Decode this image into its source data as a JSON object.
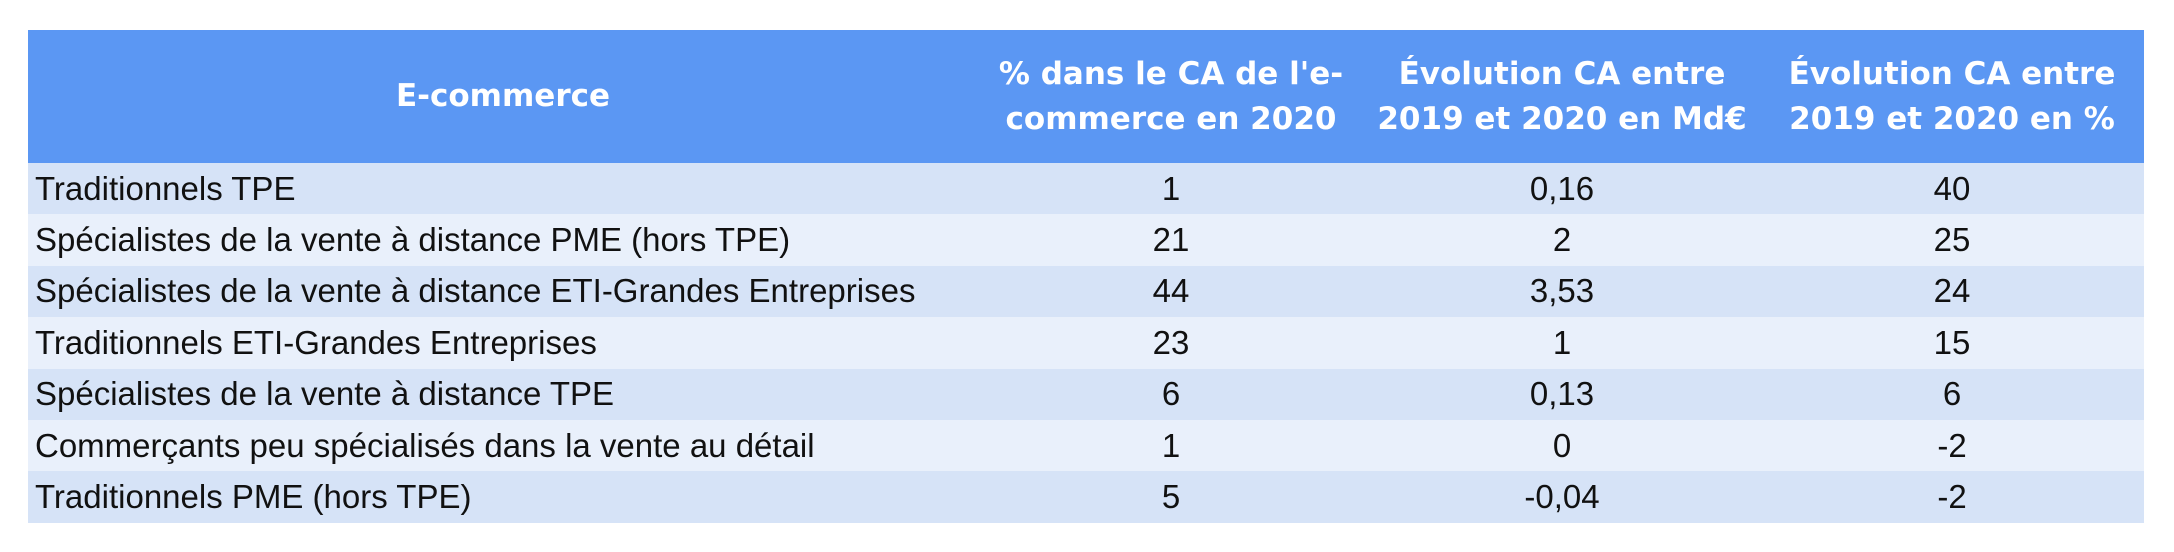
{
  "chart_data": {
    "type": "table",
    "columns": [
      "E-commerce",
      "% dans le CA de l'e-commerce en 2020",
      "Évolution CA entre 2019 et 2020 en Md€",
      "Évolution CA entre 2019 et 2020 en %"
    ],
    "rows": [
      [
        "Traditionnels TPE",
        "1",
        "0,16",
        "40"
      ],
      [
        "Spécialistes de la vente à distance PME (hors TPE)",
        "21",
        "2",
        "25"
      ],
      [
        "Spécialistes de la vente à distance ETI-Grandes Entreprises",
        "44",
        "3,53",
        "24"
      ],
      [
        "Traditionnels ETI-Grandes Entreprises",
        "23",
        "1",
        "15"
      ],
      [
        "Spécialistes de la vente à distance TPE",
        "6",
        "0,13",
        "6"
      ],
      [
        "Commerçants peu spécialisés dans la vente au détail",
        "1",
        "0",
        "-2"
      ],
      [
        "Traditionnels PME (hors TPE)",
        "5",
        "-0,04",
        "-2"
      ]
    ]
  },
  "colors": {
    "header_bg": "#5b97f3",
    "header_text": "#ffffff",
    "row_band_dark": "#d6e3f7",
    "row_band_light": "#e9f0fb"
  }
}
